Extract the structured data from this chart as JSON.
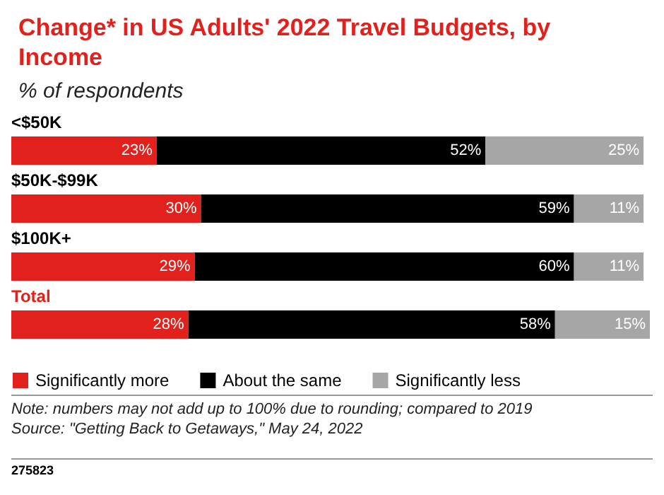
{
  "chart_data": {
    "type": "bar",
    "orientation": "horizontal",
    "stacked": true,
    "title": "Change* in US Adults' 2022 Travel Budgets, by Income",
    "subtitle": "% of respondents",
    "categories": [
      "<$50K",
      "$50K-$99K",
      "$100K+",
      "Total"
    ],
    "series": [
      {
        "name": "Significantly more",
        "color": "#e3211c",
        "values": [
          23,
          30,
          29,
          28
        ],
        "value_labels": [
          "23%",
          "30%",
          "29%",
          "28%"
        ]
      },
      {
        "name": "About the same",
        "color": "#000000",
        "values": [
          52,
          59,
          60,
          58
        ],
        "value_labels": [
          "52%",
          "59%",
          "60%",
          "58%"
        ]
      },
      {
        "name": "Significantly less",
        "color": "#a6a6a6",
        "values": [
          25,
          11,
          11,
          15
        ],
        "value_labels": [
          "25%",
          "11%",
          "11%",
          "15%"
        ]
      }
    ],
    "legend": "bottom left",
    "annotations": [
      "Note: numbers may not add up to 100% due to rounding; compared to 2019",
      "Source: \"Getting Back to Getaways,\" May 24, 2022",
      "275823"
    ]
  }
}
